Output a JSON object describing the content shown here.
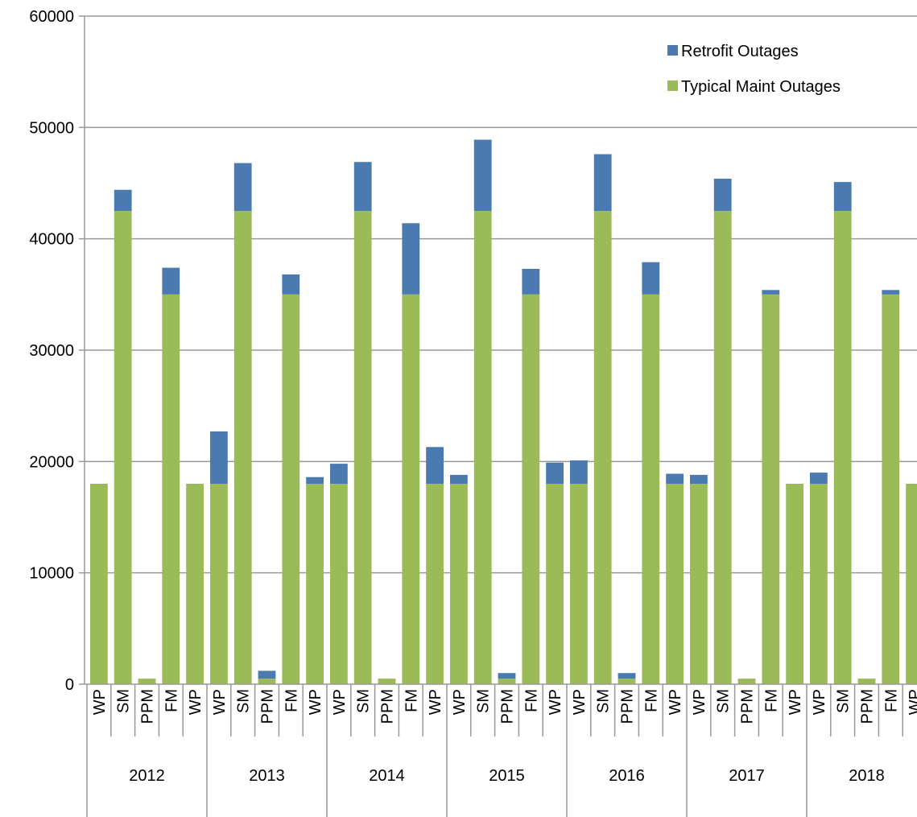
{
  "chart_data": {
    "type": "stacked_bar",
    "categories": [
      "WP",
      "SM",
      "PPM",
      "FM",
      "WP",
      "WP",
      "SM",
      "PPM",
      "FM",
      "WP",
      "WP",
      "SM",
      "PPM",
      "FM",
      "WP",
      "WP",
      "SM",
      "PPM",
      "FM",
      "WP",
      "WP",
      "SM",
      "PPM",
      "FM",
      "WP",
      "WP",
      "SM",
      "PPM",
      "FM",
      "WP",
      "WP",
      "SM",
      "PPM",
      "FM",
      "WP"
    ],
    "groups": [
      "2012",
      "2013",
      "2014",
      "2015",
      "2016",
      "2017",
      "2018"
    ],
    "series": [
      {
        "name": "Typical Maint Outages",
        "color": "#9bbb59",
        "values": [
          18000,
          42500,
          500,
          35000,
          18000,
          18000,
          42500,
          500,
          35000,
          18000,
          18000,
          42500,
          500,
          35000,
          18000,
          18000,
          42500,
          500,
          35000,
          18000,
          18000,
          42500,
          500,
          35000,
          18000,
          18000,
          42500,
          500,
          35000,
          18000,
          18000,
          42500,
          500,
          35000,
          18000
        ]
      },
      {
        "name": "Retrofit Outages",
        "color": "#4a7ab0",
        "values": [
          0,
          1900,
          0,
          2400,
          0,
          4700,
          4300,
          700,
          1800,
          600,
          1800,
          4400,
          0,
          6400,
          3300,
          800,
          6400,
          500,
          2300,
          1900,
          2100,
          5100,
          500,
          2900,
          900,
          800,
          2900,
          0,
          400,
          0,
          1000,
          2600,
          0,
          400,
          0
        ]
      }
    ],
    "ylim": [
      0,
      60000
    ],
    "yticks": [
      0,
      10000,
      20000,
      30000,
      40000,
      50000,
      60000
    ],
    "grid": true,
    "legend": "top-right"
  }
}
